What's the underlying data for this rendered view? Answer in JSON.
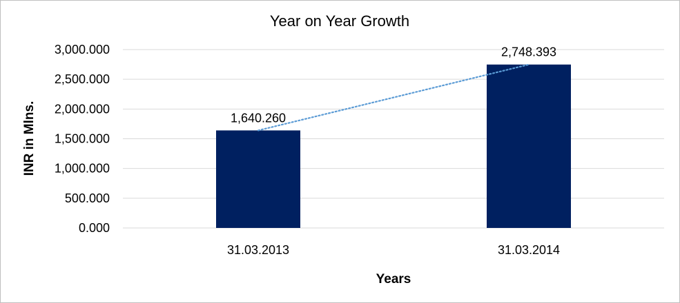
{
  "chart_data": {
    "type": "bar",
    "title": "Year on Year Growth",
    "xlabel": "Years",
    "ylabel": "INR in Mlns.",
    "categories": [
      "31.03.2013",
      "31.03.2014"
    ],
    "values": [
      1640.26,
      2748.393
    ],
    "data_labels": [
      "1,640.260",
      "2,748.393"
    ],
    "y_ticks": [
      0,
      500,
      1000,
      1500,
      2000,
      2500,
      3000
    ],
    "y_tick_labels": [
      "0.000",
      "500.000",
      "1,000.000",
      "1,500.000",
      "2,000.000",
      "2,500.000",
      "3,000.000"
    ],
    "ylim": [
      0,
      3000
    ],
    "grid": true,
    "legend": "none",
    "trendline": "linear dotted",
    "colors": {
      "bar": "#002060",
      "trendline": "#5b9bd5",
      "grid": "#d9d9d9"
    }
  }
}
